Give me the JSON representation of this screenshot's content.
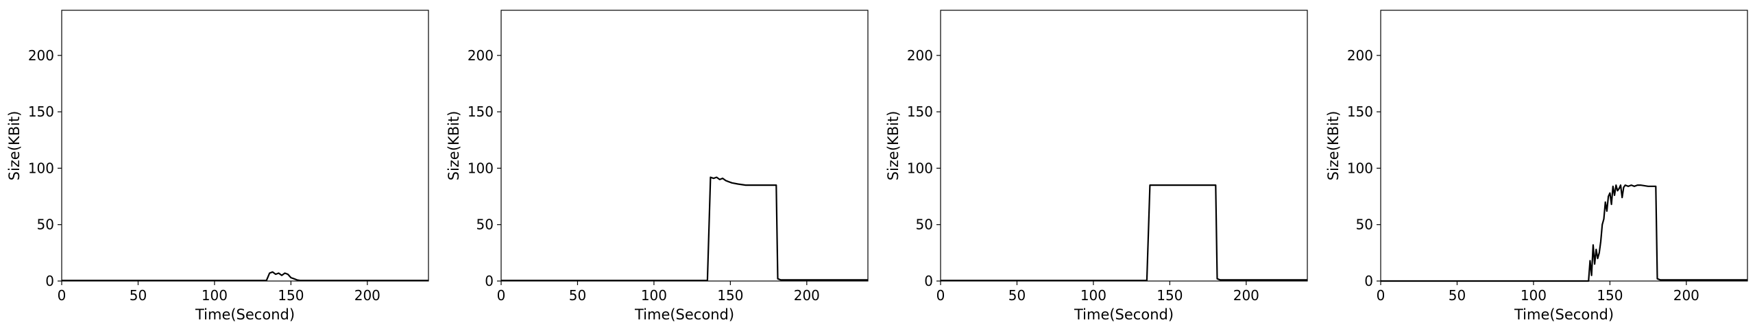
{
  "chart_data": [
    {
      "type": "line",
      "title": "",
      "xlabel": "Time(Second)",
      "ylabel": "Size(KBit)",
      "xlim": [
        0,
        240
      ],
      "ylim": [
        0,
        240
      ],
      "xticks": [
        0,
        50,
        100,
        150,
        200
      ],
      "yticks": [
        0,
        50,
        100,
        150,
        200
      ],
      "grid": false,
      "series": [
        {
          "color": "#000000",
          "x": [
            0,
            134,
            136,
            138,
            140,
            142,
            144,
            146,
            148,
            150,
            152,
            154,
            156,
            158,
            160,
            240
          ],
          "y": [
            0.5,
            0.5,
            7,
            8,
            6,
            7,
            5,
            7,
            6,
            3,
            2,
            1,
            0.5,
            0.5,
            0.5,
            0.5
          ]
        }
      ]
    },
    {
      "type": "line",
      "title": "",
      "xlabel": "Time(Second)",
      "ylabel": "Size(KBit)",
      "xlim": [
        0,
        240
      ],
      "ylim": [
        0,
        240
      ],
      "xticks": [
        0,
        50,
        100,
        150,
        200
      ],
      "yticks": [
        0,
        50,
        100,
        150,
        200
      ],
      "grid": false,
      "series": [
        {
          "color": "#000000",
          "x": [
            0,
            135,
            137,
            139,
            141,
            143,
            145,
            147,
            149,
            151,
            155,
            160,
            165,
            170,
            175,
            180,
            181,
            183,
            240
          ],
          "y": [
            0.5,
            0.5,
            92,
            91,
            92,
            90,
            91,
            89,
            88,
            87,
            86,
            85,
            85,
            85,
            85,
            85,
            2,
            1,
            1
          ]
        }
      ]
    },
    {
      "type": "line",
      "title": "",
      "xlabel": "Time(Second)",
      "ylabel": "Size(KBit)",
      "xlim": [
        0,
        240
      ],
      "ylim": [
        0,
        240
      ],
      "xticks": [
        0,
        50,
        100,
        150,
        200
      ],
      "yticks": [
        0,
        50,
        100,
        150,
        200
      ],
      "grid": false,
      "series": [
        {
          "color": "#000000",
          "x": [
            0,
            135,
            137,
            145,
            155,
            165,
            175,
            180,
            181,
            183,
            240
          ],
          "y": [
            0.5,
            0.5,
            85,
            85,
            85,
            85,
            85,
            85,
            2,
            1,
            1
          ]
        }
      ]
    },
    {
      "type": "line",
      "title": "",
      "xlabel": "Time(Second)",
      "ylabel": "Size(KBit)",
      "xlim": [
        0,
        240
      ],
      "ylim": [
        0,
        240
      ],
      "xticks": [
        0,
        50,
        100,
        150,
        200
      ],
      "yticks": [
        0,
        50,
        100,
        150,
        200
      ],
      "grid": false,
      "series": [
        {
          "color": "#000000",
          "x": [
            0,
            136,
            137,
            138,
            139,
            140,
            141,
            142,
            143,
            144,
            145,
            146,
            147,
            148,
            149,
            150,
            151,
            152,
            153,
            154,
            155,
            156,
            157,
            158,
            159,
            160,
            162,
            164,
            166,
            168,
            170,
            175,
            180,
            181,
            183,
            240
          ],
          "y": [
            0,
            0,
            18,
            5,
            32,
            15,
            28,
            20,
            25,
            35,
            50,
            55,
            70,
            62,
            75,
            78,
            68,
            84,
            76,
            85,
            80,
            82,
            85,
            74,
            83,
            85,
            84,
            85,
            84,
            85,
            85,
            84,
            84,
            2,
            1,
            1
          ]
        }
      ]
    }
  ]
}
